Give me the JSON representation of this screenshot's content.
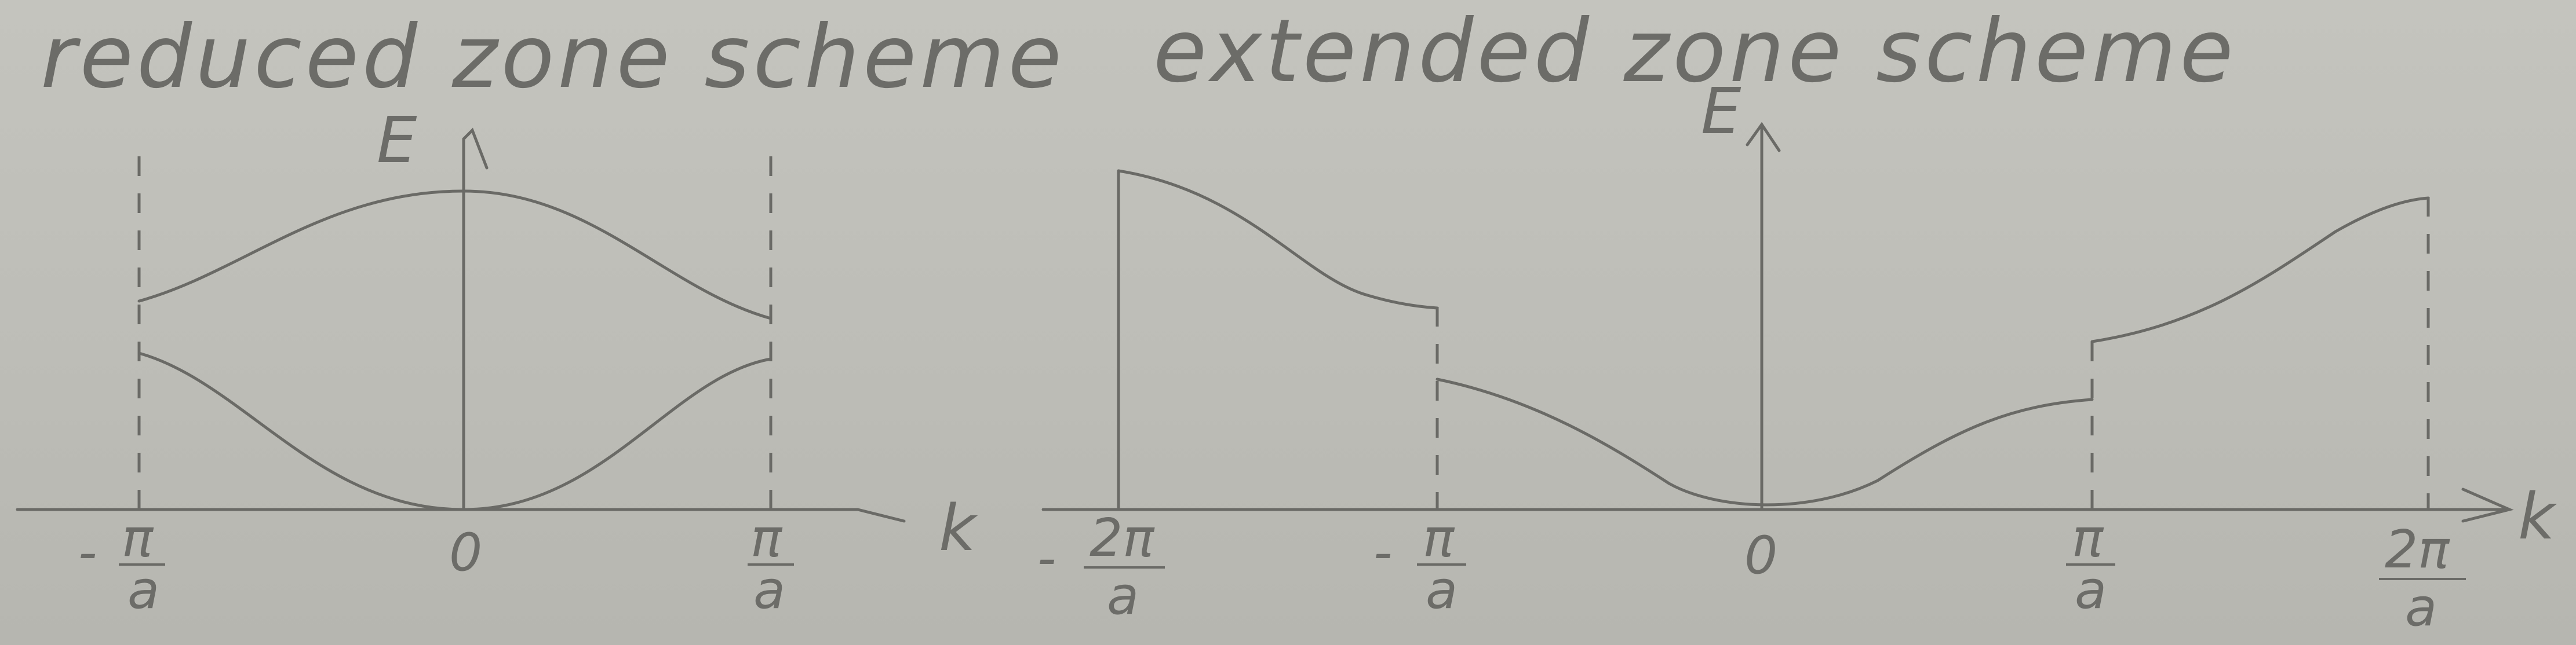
{
  "reduced": {
    "title": "reduced zone scheme",
    "energy_label": "E",
    "k_label": "k",
    "ticks": {
      "minus_pi_sign": "-",
      "pi": "π",
      "a": "a",
      "zero": "0"
    }
  },
  "extended": {
    "title": "extended zone scheme",
    "energy_label": "E",
    "k_label": "k",
    "ticks": {
      "minus_sign": "-",
      "two_pi": "2π",
      "pi": "π",
      "a": "a",
      "zero": "0"
    }
  }
}
